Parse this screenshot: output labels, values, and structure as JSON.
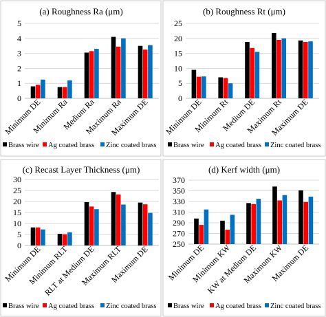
{
  "figure": {
    "colors": {
      "border": "#c8c8c8",
      "grid": "#d9d9d9",
      "axis": "#bfbfbf"
    }
  },
  "chart_data": [
    {
      "type": "bar",
      "title": "(a) Roughness Ra (μm)",
      "categories": [
        "Minimum DE",
        "Minimum Ra",
        "Medium Ra",
        "Maximum Ra",
        "Maximum DE"
      ],
      "ylim": [
        0,
        5
      ],
      "yticks": [
        0,
        1,
        2,
        3,
        4,
        5
      ],
      "grid": true,
      "legend": "bottom",
      "series": [
        {
          "name": "Brass wire",
          "color": "#000000",
          "values": [
            0.8,
            0.75,
            3.05,
            4.1,
            3.5
          ]
        },
        {
          "name": "Ag coated brass",
          "color": "#ff0000",
          "values": [
            0.9,
            0.75,
            3.15,
            3.45,
            3.25
          ]
        },
        {
          "name": "Zinc coated brass",
          "color": "#0070c0",
          "values": [
            1.25,
            1.2,
            3.3,
            4.0,
            3.55
          ]
        }
      ]
    },
    {
      "type": "bar",
      "title": "(b) Roughness Rt (μm)",
      "categories": [
        "Minimum DE",
        "Minimum Rt",
        "Medium DE",
        "Maximum Rt",
        "Maximum DE"
      ],
      "ylim": [
        0,
        25
      ],
      "yticks": [
        0,
        5,
        10,
        15,
        20,
        25
      ],
      "grid": true,
      "legend": "bottom",
      "series": [
        {
          "name": "Brass wire",
          "color": "#000000",
          "values": [
            9.5,
            7.0,
            18.8,
            21.8,
            19.3
          ]
        },
        {
          "name": "Ag coated brass",
          "color": "#ff0000",
          "values": [
            7.2,
            6.8,
            16.8,
            19.5,
            18.8
          ]
        },
        {
          "name": "Zinc coated brass",
          "color": "#0070c0",
          "values": [
            7.3,
            5.0,
            15.5,
            20.0,
            19.0
          ]
        }
      ]
    },
    {
      "type": "bar",
      "title": "(c) Recast Layer Thickness (μm)",
      "categories": [
        "Minimum DE",
        "Minimum RLT",
        "RLT at Medium DE",
        "Maximum RLT",
        "Maximum DE"
      ],
      "ylim": [
        0,
        30
      ],
      "yticks": [
        0,
        5,
        10,
        15,
        20,
        25,
        30
      ],
      "grid": true,
      "legend": "bottom",
      "series": [
        {
          "name": "Brass wire",
          "color": "#000000",
          "values": [
            8.2,
            5.3,
            19.7,
            24.3,
            19.5
          ]
        },
        {
          "name": "Ag coated brass",
          "color": "#ff0000",
          "values": [
            8.2,
            5.1,
            17.7,
            23.2,
            18.7
          ]
        },
        {
          "name": "Zinc coated brass",
          "color": "#0070c0",
          "values": [
            7.3,
            6.0,
            16.5,
            18.6,
            14.8
          ]
        }
      ]
    },
    {
      "type": "bar",
      "title": "(d) Kerf width (μm)",
      "categories": [
        "Minimum DE",
        "Minimum KW",
        "KW at Medium DE",
        "Maximum KW",
        "Maximum DE"
      ],
      "ylim": [
        250,
        370
      ],
      "yticks": [
        250,
        270,
        290,
        310,
        330,
        350,
        370
      ],
      "grid": true,
      "legend": "bottom",
      "series": [
        {
          "name": "Brass wire",
          "color": "#000000",
          "values": [
            298,
            294,
            327,
            358,
            351
          ]
        },
        {
          "name": "Ag coated brass",
          "color": "#ff0000",
          "values": [
            286,
            277,
            325,
            332,
            329
          ]
        },
        {
          "name": "Zinc coated brass",
          "color": "#0070c0",
          "values": [
            315,
            305,
            335,
            342,
            339
          ]
        }
      ]
    }
  ]
}
